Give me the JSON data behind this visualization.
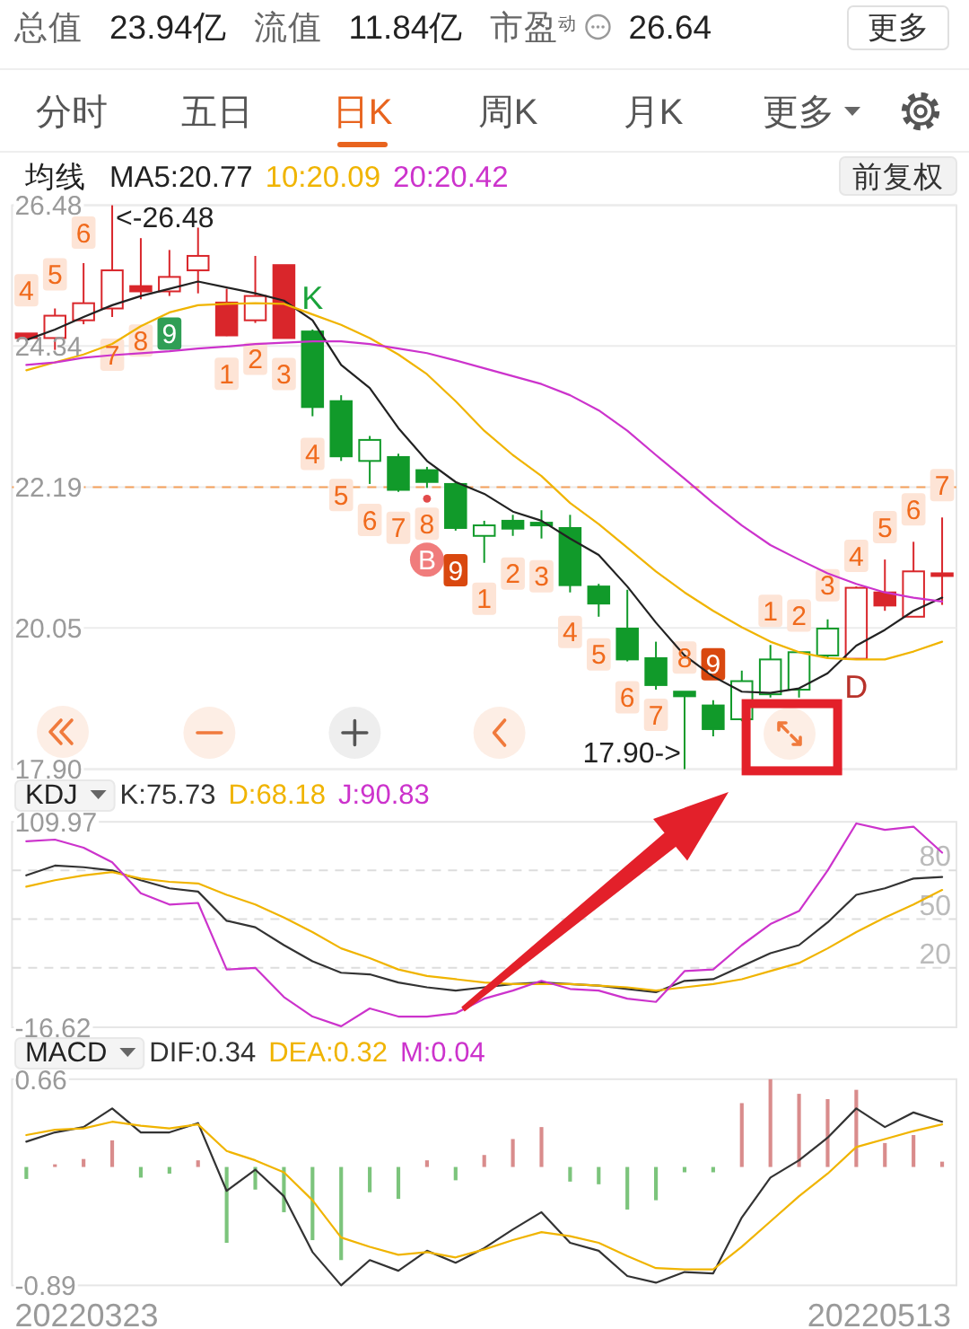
{
  "chart_data": [
    {
      "type": "other",
      "annotations": [
        "总值",
        "23.94亿",
        "流值",
        "11.84亿",
        "市盈$^{动}$",
        "26.64",
        "更多"
      ],
      "categories": [
        "分时",
        "五日",
        "日K",
        "周K",
        "月K",
        "更多"
      ]
    },
    {
      "type": "candlestick",
      "legend_title": "均线",
      "legend": "top left",
      "tick_labels": "y",
      "grid": "y",
      "categories": [
        null,
        null,
        null,
        null,
        null,
        null,
        null,
        null,
        null,
        null,
        null,
        null,
        null,
        null,
        null,
        null,
        null,
        null,
        null,
        null,
        null,
        null,
        null,
        null,
        null,
        null,
        null,
        null,
        null,
        null,
        null,
        null,
        null
      ],
      "ylim": [
        17.9,
        26.48
      ],
      "yticks": [
        26.48,
        24.34,
        22.19,
        20.05,
        {
          "value": 17.9,
          "label": "17.90"
        }
      ],
      "ohlc": [
        [
          24.53,
          24.53,
          24.46,
          24.46
        ],
        [
          24.46,
          24.91,
          24.28,
          24.8
        ],
        [
          24.73,
          25.6,
          24.67,
          24.99
        ],
        [
          24.91,
          26.48,
          24.78,
          25.49
        ],
        [
          25.25,
          25.98,
          25.05,
          25.17
        ],
        [
          25.17,
          25.8,
          25.1,
          25.39
        ],
        [
          25.49,
          26.14,
          25.14,
          25.71
        ],
        [
          25.0,
          25.21,
          24.49,
          24.5
        ],
        [
          24.73,
          25.71,
          24.69,
          25.1
        ],
        [
          25.57,
          25.57,
          24.46,
          24.46
        ],
        [
          24.56,
          24.59,
          23.27,
          23.41
        ],
        [
          23.5,
          23.59,
          22.59,
          22.66
        ],
        [
          22.59,
          22.97,
          22.24,
          22.91
        ],
        [
          22.65,
          22.7,
          22.12,
          22.15
        ],
        [
          22.45,
          22.5,
          22.18,
          22.27
        ],
        [
          22.24,
          22.27,
          21.53,
          21.57
        ],
        [
          21.45,
          21.68,
          21.04,
          21.61
        ],
        [
          21.68,
          21.77,
          21.45,
          21.56
        ],
        [
          21.63,
          21.84,
          21.41,
          21.63
        ],
        [
          21.57,
          21.77,
          20.59,
          20.7
        ],
        [
          20.68,
          20.72,
          20.22,
          20.42
        ],
        [
          20.04,
          20.63,
          19.54,
          19.57
        ],
        [
          19.59,
          19.84,
          19.11,
          19.18
        ],
        [
          19.08,
          19.08,
          17.9,
          19.01
        ],
        [
          18.87,
          18.95,
          18.4,
          18.51
        ],
        [
          18.66,
          19.4,
          18.63,
          19.24
        ],
        [
          19.04,
          19.79,
          18.99,
          19.57
        ],
        [
          19.11,
          19.69,
          18.99,
          19.68
        ],
        [
          19.63,
          20.18,
          19.6,
          20.04
        ],
        [
          19.58,
          20.68,
          19.58,
          20.66
        ],
        [
          20.59,
          21.09,
          20.31,
          20.39
        ],
        [
          20.22,
          21.36,
          20.22,
          20.91
        ],
        [
          20.88,
          21.73,
          20.4,
          20.84
        ]
      ],
      "colors": [
        "#d9262b",
        "#d9262b",
        "#d9262b",
        "#d9262b",
        "#d9262b",
        "#d9262b",
        "#d9262b",
        "#d9262b",
        "#d9262b",
        "#d9262b",
        "#119a2a",
        "#119a2a",
        "#119a2a",
        "#119a2a",
        "#119a2a",
        "#119a2a",
        "#119a2a",
        "#119a2a",
        "#119a2a",
        "#119a2a",
        "#119a2a",
        "#119a2a",
        "#119a2a",
        "#119a2a",
        "#119a2a",
        "#119a2a",
        "#119a2a",
        "#119a2a",
        "#119a2a",
        "#d9262b",
        "#d9262b",
        "#d9262b",
        "#d9262b"
      ],
      "series": [
        {
          "name": "MA5:20.77",
          "type": "line",
          "color": "#222222",
          "values": [
            24.43,
            24.59,
            24.78,
            24.96,
            25.1,
            25.21,
            25.32,
            25.23,
            25.14,
            25.03,
            24.73,
            24.05,
            23.7,
            23.09,
            22.59,
            22.27,
            22.09,
            21.82,
            21.68,
            21.41,
            21.16,
            20.68,
            20.13,
            19.63,
            19.31,
            19.08,
            19.06,
            19.13,
            19.36,
            19.78,
            20.02,
            20.31,
            20.51
          ]
        },
        {
          "name": "10:20.09",
          "type": "line",
          "color": "#f0b400",
          "values": [
            23.97,
            24.09,
            24.21,
            24.37,
            24.64,
            24.85,
            24.96,
            24.98,
            24.99,
            24.98,
            24.82,
            24.66,
            24.46,
            24.21,
            23.91,
            23.5,
            23.05,
            22.68,
            22.36,
            21.95,
            21.63,
            21.27,
            20.91,
            20.59,
            20.31,
            20.06,
            19.84,
            19.68,
            19.59,
            19.57,
            19.57,
            19.69,
            19.84
          ]
        },
        {
          "name": "20:20.42",
          "type": "line",
          "color": "#cc33cc",
          "values": [
            24.05,
            24.09,
            24.16,
            24.2,
            24.23,
            24.26,
            24.3,
            24.33,
            24.37,
            24.39,
            24.41,
            24.41,
            24.37,
            24.3,
            24.23,
            24.12,
            24.0,
            23.88,
            23.76,
            23.59,
            23.36,
            23.05,
            22.68,
            22.32,
            21.95,
            21.61,
            21.31,
            21.09,
            20.88,
            20.72,
            20.59,
            20.51,
            20.45
          ]
        }
      ],
      "ref_lines": [
        {
          "axis": "y",
          "value": 22.19,
          "color": "#f5a15c",
          "line_style": "dashed"
        }
      ],
      "annotations": [
        "4",
        "5",
        "6",
        "7",
        "8",
        "9",
        "1",
        "2",
        "3",
        "K",
        "4",
        "5",
        "6",
        "7",
        "8",
        "B",
        "9",
        "1",
        "2",
        "3",
        "4",
        "5",
        "6",
        "7",
        "8",
        "9",
        "1",
        "2",
        "3",
        "D",
        "4",
        "5",
        "6",
        "7",
        "<-26.48",
        "17.90->",
        "前复权"
      ]
    },
    {
      "type": "line",
      "title": "KDJ",
      "legend": "top",
      "tick_labels": "y",
      "categories": [
        null,
        null,
        null,
        null,
        null,
        null,
        null,
        null,
        null,
        null,
        null,
        null,
        null,
        null,
        null,
        null,
        null,
        null,
        null,
        null,
        null,
        null,
        null,
        null,
        null,
        null,
        null,
        null,
        null,
        null,
        null,
        null,
        null
      ],
      "ylim": [
        -16.62,
        109.97
      ],
      "yticks": [
        109.97,
        -16.62
      ],
      "ref_lines": [
        {
          "axis": "y",
          "value": 80,
          "label": "80",
          "color": "#dddddd",
          "line_style": "dashed"
        },
        {
          "axis": "y",
          "value": 50,
          "label": "50",
          "color": "#dddddd",
          "line_style": "dashed"
        },
        {
          "axis": "y",
          "value": 20,
          "label": "20",
          "color": "#dddddd",
          "line_style": "dashed"
        }
      ],
      "series": [
        {
          "name": "K:75.73",
          "color": "#333333",
          "values": [
            77,
            83,
            82,
            80,
            74,
            69,
            67,
            49,
            45,
            34,
            24,
            17,
            16,
            11,
            8,
            6,
            8,
            10,
            11,
            10,
            9,
            7,
            5,
            12,
            13,
            21,
            29,
            34,
            48,
            65,
            69,
            75,
            76
          ]
        },
        {
          "name": "D:68.18",
          "color": "#f0b400",
          "values": [
            70,
            74,
            77,
            79,
            75,
            73,
            72,
            65,
            59,
            51,
            42,
            32,
            26,
            19,
            15,
            13,
            11,
            10,
            10,
            10,
            9,
            8,
            6,
            8,
            10,
            13,
            18,
            23,
            32,
            42,
            51,
            59,
            68
          ]
        },
        {
          "name": "J:90.83",
          "color": "#cc33cc",
          "values": [
            98,
            99,
            94,
            85,
            66,
            59,
            60,
            19,
            20,
            2,
            -10,
            -16,
            -5,
            -10,
            -10,
            -8,
            1,
            6,
            12,
            7,
            6,
            1,
            -1,
            18,
            19,
            34,
            47,
            55,
            80,
            109,
            105,
            107,
            91
          ]
        }
      ]
    },
    {
      "type": "line",
      "title": "MACD",
      "legend": "top left",
      "tick_labels": "y",
      "categories": [
        null,
        null,
        null,
        null,
        null,
        null,
        null,
        null,
        null,
        null,
        null,
        null,
        null,
        null,
        null,
        null,
        null,
        null,
        null,
        null,
        null,
        null,
        null,
        null,
        null,
        null,
        null,
        null,
        null,
        null,
        null,
        null,
        null
      ],
      "ylim": [
        -0.89,
        0.66
      ],
      "yticks": [
        0.66,
        -0.89
      ],
      "series": [
        {
          "name": "DIF:0.34",
          "color": "#333333",
          "values": [
            0.19,
            0.26,
            0.3,
            0.44,
            0.26,
            0.26,
            0.33,
            -0.18,
            -0.02,
            -0.22,
            -0.64,
            -0.89,
            -0.7,
            -0.78,
            -0.63,
            -0.72,
            -0.61,
            -0.47,
            -0.34,
            -0.57,
            -0.63,
            -0.82,
            -0.87,
            -0.79,
            -0.8,
            -0.38,
            -0.08,
            0.05,
            0.22,
            0.44,
            0.3,
            0.41,
            0.34
          ]
        },
        {
          "name": "DEA:0.32",
          "color": "#f0b400",
          "values": [
            0.24,
            0.28,
            0.29,
            0.34,
            0.31,
            0.29,
            0.32,
            0.12,
            0.05,
            -0.04,
            -0.25,
            -0.53,
            -0.6,
            -0.66,
            -0.64,
            -0.68,
            -0.62,
            -0.55,
            -0.49,
            -0.52,
            -0.57,
            -0.67,
            -0.76,
            -0.77,
            -0.77,
            -0.6,
            -0.41,
            -0.22,
            -0.05,
            0.15,
            0.21,
            0.27,
            0.32
          ]
        },
        {
          "name": "M:0.04",
          "type": "bar",
          "color": "#cc33cc",
          "values": [
            -0.09,
            0.02,
            0.06,
            0.2,
            -0.08,
            -0.05,
            0.05,
            -0.57,
            -0.17,
            -0.34,
            -0.55,
            -0.7,
            -0.19,
            -0.24,
            0.05,
            -0.1,
            0.09,
            0.21,
            0.3,
            -0.11,
            -0.13,
            -0.32,
            -0.25,
            -0.04,
            -0.04,
            0.48,
            0.66,
            0.55,
            0.51,
            0.58,
            0.18,
            0.24,
            0.04
          ],
          "colors": [
            "#7cc47c",
            "#d98c8c",
            "#d98c8c",
            "#d98c8c",
            "#7cc47c",
            "#7cc47c",
            "#d98c8c",
            "#7cc47c",
            "#7cc47c",
            "#7cc47c",
            "#7cc47c",
            "#7cc47c",
            "#7cc47c",
            "#7cc47c",
            "#d98c8c",
            "#7cc47c",
            "#d98c8c",
            "#d98c8c",
            "#d98c8c",
            "#7cc47c",
            "#7cc47c",
            "#7cc47c",
            "#7cc47c",
            "#7cc47c",
            "#7cc47c",
            "#d98c8c",
            "#d98c8c",
            "#d98c8c",
            "#d98c8c",
            "#d98c8c",
            "#d98c8c",
            "#d98c8c",
            "#d98c8c"
          ]
        }
      ],
      "annotations": [
        "20220323",
        "20220513"
      ]
    }
  ]
}
